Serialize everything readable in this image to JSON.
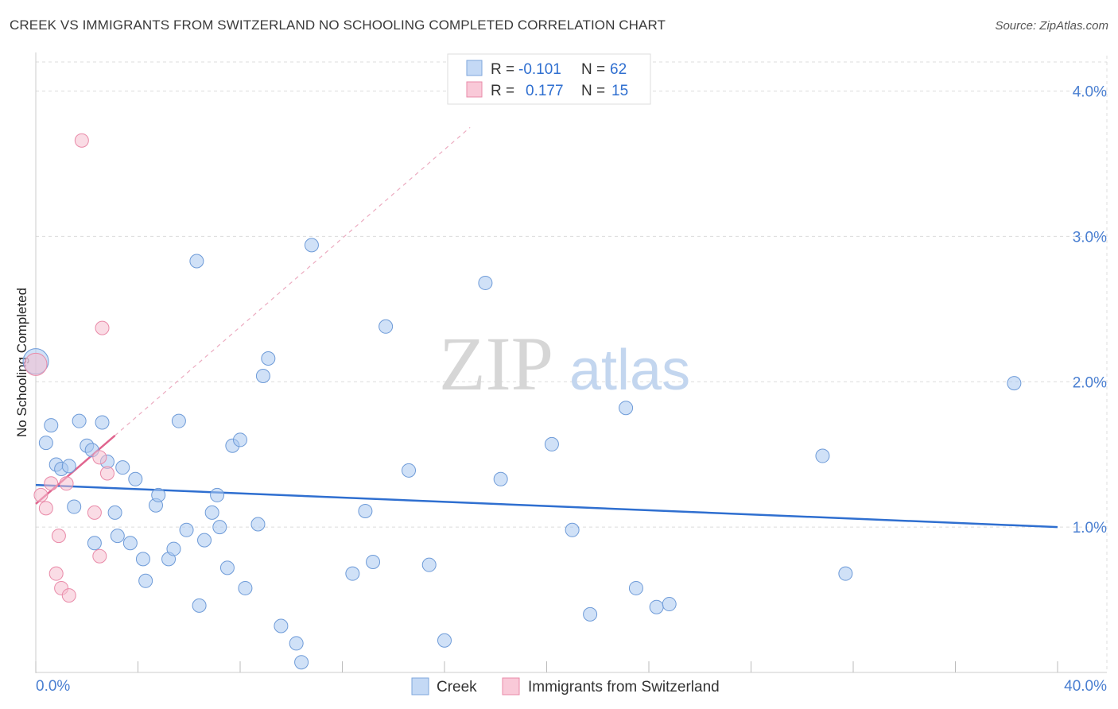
{
  "title": "CREEK VS IMMIGRANTS FROM SWITZERLAND NO SCHOOLING COMPLETED CORRELATION CHART",
  "source": "Source: ZipAtlas.com",
  "watermark": {
    "zip": "ZIP",
    "atlas": "atlas"
  },
  "legend": {
    "rows": [
      {
        "r_label": "R =",
        "r_value": "-0.101",
        "n_label": "N =",
        "n_value": "62"
      },
      {
        "r_label": "R =",
        "r_value": "0.177",
        "n_label": "N =",
        "n_value": "15"
      }
    ]
  },
  "chart_data": {
    "type": "scatter",
    "title": "CREEK VS IMMIGRANTS FROM SWITZERLAND NO SCHOOLING COMPLETED CORRELATION CHART",
    "xlabel": "",
    "ylabel": "No Schooling Completed",
    "xlim": [
      0,
      40
    ],
    "ylim": [
      0,
      4.2
    ],
    "x_tick_labels": [
      "0.0%",
      "40.0%"
    ],
    "y_ticks": [
      1.0,
      2.0,
      3.0,
      4.0
    ],
    "y_tick_labels": [
      "1.0%",
      "2.0%",
      "3.0%",
      "4.0%"
    ],
    "grid": true,
    "legend_position": "bottom-center",
    "series": [
      {
        "name": "Creek",
        "color": "#a9c8f0",
        "edge_color": "#6e9bd8",
        "line_color": "#2f6fd0",
        "r": -0.101,
        "n": 62,
        "trend": {
          "x": [
            0,
            40
          ],
          "y": [
            1.29,
            1.0
          ]
        },
        "points": [
          [
            0.0,
            2.14
          ],
          [
            0.4,
            1.58
          ],
          [
            0.6,
            1.7
          ],
          [
            0.8,
            1.43
          ],
          [
            1.0,
            1.4
          ],
          [
            1.3,
            1.42
          ],
          [
            1.5,
            1.14
          ],
          [
            1.7,
            1.73
          ],
          [
            2.0,
            1.56
          ],
          [
            2.2,
            1.53
          ],
          [
            2.3,
            0.89
          ],
          [
            2.6,
            1.72
          ],
          [
            2.8,
            1.45
          ],
          [
            3.1,
            1.1
          ],
          [
            3.2,
            0.94
          ],
          [
            3.4,
            1.41
          ],
          [
            3.7,
            0.89
          ],
          [
            3.9,
            1.33
          ],
          [
            4.2,
            0.78
          ],
          [
            4.3,
            0.63
          ],
          [
            4.7,
            1.15
          ],
          [
            4.8,
            1.22
          ],
          [
            5.2,
            0.78
          ],
          [
            5.4,
            0.85
          ],
          [
            5.6,
            1.73
          ],
          [
            5.9,
            0.98
          ],
          [
            6.3,
            2.83
          ],
          [
            6.4,
            0.46
          ],
          [
            6.6,
            0.91
          ],
          [
            6.9,
            1.1
          ],
          [
            7.1,
            1.22
          ],
          [
            7.2,
            1.0
          ],
          [
            7.5,
            0.72
          ],
          [
            7.7,
            1.56
          ],
          [
            8.0,
            1.6
          ],
          [
            8.2,
            0.58
          ],
          [
            8.7,
            1.02
          ],
          [
            8.9,
            2.04
          ],
          [
            9.1,
            2.16
          ],
          [
            9.6,
            0.32
          ],
          [
            10.2,
            0.2
          ],
          [
            10.4,
            0.07
          ],
          [
            10.8,
            2.94
          ],
          [
            12.4,
            0.68
          ],
          [
            12.9,
            1.11
          ],
          [
            13.2,
            0.76
          ],
          [
            13.7,
            2.38
          ],
          [
            14.6,
            1.39
          ],
          [
            15.4,
            0.74
          ],
          [
            16.0,
            0.22
          ],
          [
            17.6,
            2.68
          ],
          [
            18.2,
            1.33
          ],
          [
            20.2,
            1.57
          ],
          [
            21.0,
            0.98
          ],
          [
            21.7,
            0.4
          ],
          [
            23.1,
            1.82
          ],
          [
            23.5,
            0.58
          ],
          [
            24.3,
            0.45
          ],
          [
            24.8,
            0.47
          ],
          [
            30.8,
            1.49
          ],
          [
            31.7,
            0.68
          ],
          [
            38.3,
            1.99
          ]
        ]
      },
      {
        "name": "Immigrants from Switzerland",
        "color": "#f6bfd0",
        "edge_color": "#e98aa8",
        "line_color": "#e0648e",
        "r": 0.177,
        "n": 15,
        "trend_solid": {
          "x": [
            0,
            3.1
          ],
          "y": [
            1.16,
            1.63
          ]
        },
        "trend_dashed": {
          "x": [
            3.1,
            17.0
          ],
          "y": [
            1.63,
            3.75
          ]
        },
        "points": [
          [
            0.0,
            2.12
          ],
          [
            0.2,
            1.22
          ],
          [
            0.4,
            1.13
          ],
          [
            0.6,
            1.3
          ],
          [
            0.8,
            0.68
          ],
          [
            0.9,
            0.94
          ],
          [
            1.0,
            0.58
          ],
          [
            1.2,
            1.3
          ],
          [
            1.3,
            0.53
          ],
          [
            1.8,
            3.66
          ],
          [
            2.3,
            1.1
          ],
          [
            2.5,
            1.48
          ],
          [
            2.5,
            0.8
          ],
          [
            2.6,
            2.37
          ],
          [
            2.8,
            1.37
          ]
        ]
      }
    ]
  }
}
